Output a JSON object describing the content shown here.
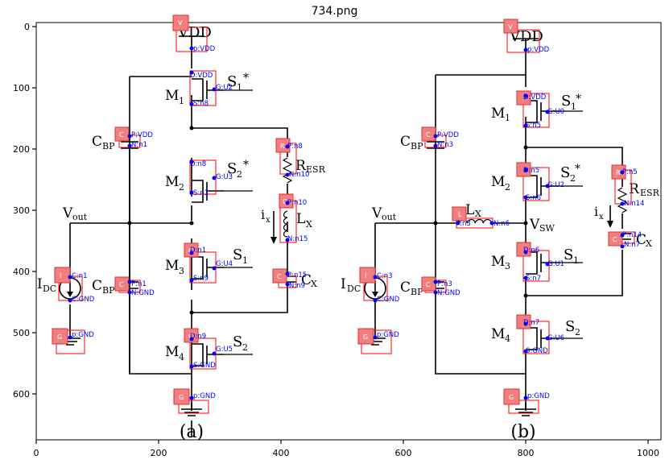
{
  "title": "734.png",
  "x_ticks": [
    "0",
    "200",
    "400",
    "600",
    "800",
    "1000"
  ],
  "y_ticks": [
    "0",
    "100",
    "200",
    "300",
    "400",
    "500",
    "600"
  ],
  "circuit_a": {
    "caption": "(a)",
    "labels": {
      "vdd": "VDD",
      "m1": "M",
      "m1s": "1",
      "s1star": "S",
      "s1star_sub": "1",
      "star": "*",
      "cbp": "C",
      "cbp_sub": "BP",
      "m2": "M",
      "m2s": "2",
      "s2star": "S",
      "s2star_sub": "2",
      "resr": "R",
      "resr_sub": "ESR",
      "vout": "V",
      "vout_sub": "out",
      "ix": "i",
      "ix_sub": "x",
      "lx": "L",
      "lx_sub": "X",
      "m3": "M",
      "m3s": "3",
      "s1": "S",
      "s1_sub": "1",
      "idc": "I",
      "idc_sub": "DC",
      "cbp2": "C",
      "cbp2_sub": "BP",
      "cx": "C",
      "cx_sub": "X",
      "m4": "M",
      "m4s": "4",
      "s2": "S",
      "s2_sub": "2"
    },
    "tags": [
      "V",
      "C",
      "R",
      "C",
      "I",
      "C",
      "G",
      "C",
      "G"
    ],
    "annotations": [
      "p:VDD",
      "D:VDD",
      "G:U2",
      "S:n8",
      "P:VDD",
      "N:n1",
      "P:n8",
      "N:n10",
      "D:n8",
      "G:U3",
      "S:n1",
      "P:n10",
      "N:n15",
      "D:n1",
      "G:U4",
      "S:n9",
      "C:n1",
      "C:GND",
      "P:n1",
      "N:GND",
      "P:n15",
      "N:n9",
      "p:GND",
      "D:n9",
      "G:U5",
      "S:GND",
      "p:GND"
    ]
  },
  "circuit_b": {
    "caption": "(b)",
    "labels": {
      "vdd": "VDD",
      "m1": "M",
      "m1s": "1",
      "s1star": "S",
      "s1star_sub": "1",
      "star": "*",
      "cbp": "C",
      "cbp_sub": "BP",
      "m2": "M",
      "m2s": "2",
      "s2star": "S",
      "s2star_sub": "2",
      "resr": "R",
      "resr_sub": "ESR",
      "vout": "V",
      "vout_sub": "out",
      "lx": "L",
      "lx_sub": "X",
      "vsw": "V",
      "vsw_sub": "SW",
      "ix": "i",
      "ix_sub": "x",
      "m3": "M",
      "m3s": "3",
      "s1": "S",
      "s1_sub": "1",
      "cx": "C",
      "cx_sub": "X",
      "idc": "I",
      "idc_sub": "DC",
      "cbp2": "C",
      "cbp2_sub": "BP",
      "m4": "M",
      "m4s": "4",
      "s2": "S",
      "s2_sub": "2"
    },
    "tags": [
      "V",
      "C",
      "R",
      "L",
      "C",
      "I",
      "C",
      "G",
      "G"
    ],
    "annotations": [
      "p:VDD",
      "D:VDD",
      "G:U0",
      "S:n5",
      "P:VDD",
      "N:n3",
      "D:n5",
      "G:U2",
      "S:n6",
      "P:n5",
      "N:n14",
      "P:n3",
      "N:n6",
      "P:n14",
      "N:n7",
      "D:n6",
      "G:U1",
      "S:n7",
      "C:n3",
      "C:GND",
      "P:n3",
      "N:GND",
      "D:n7",
      "G:U6",
      "S:GND",
      "p:GND",
      "p:GND"
    ]
  }
}
